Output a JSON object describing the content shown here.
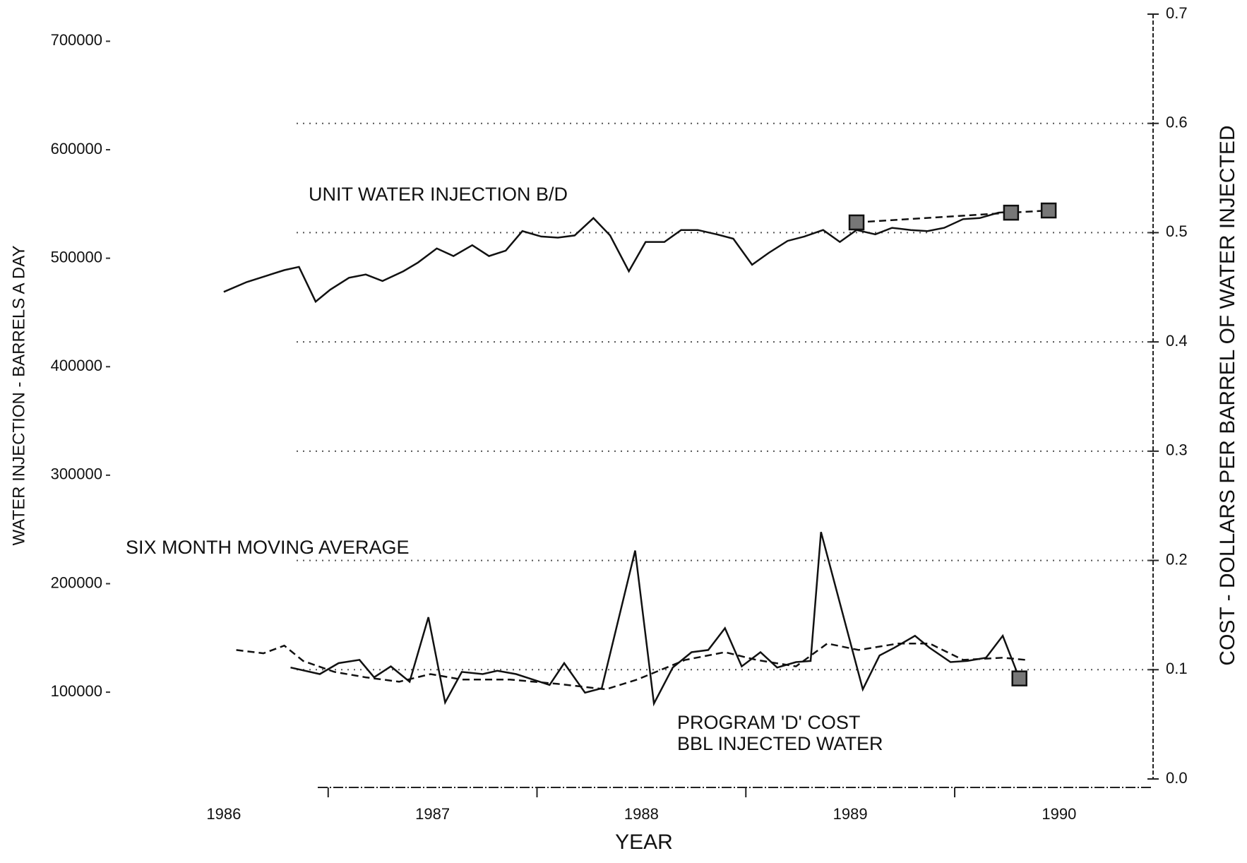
{
  "chart_data": {
    "type": "line",
    "y_label": "WATER INJECTION - BARRELS A DAY",
    "y2_label": "COST - DOLLARS PER BARREL OF WATER INJECTED",
    "x_label": "YEAR",
    "annotations": [
      "UNIT WATER INJECTION B/D",
      "SIX MONTH MOVING AVERAGE",
      "PROGRAM 'D' COST",
      "BBL INJECTED WATER"
    ],
    "xlim": [
      1985.5,
      1990.45
    ],
    "xticks": [
      1986,
      1987,
      1988,
      1989,
      1990
    ],
    "x_minor_ticks": [
      1986.5,
      1987.5,
      1988.5,
      1989.5
    ],
    "ylim": [
      20000,
      725000
    ],
    "yticks": [
      100000,
      200000,
      300000,
      400000,
      500000,
      600000,
      700000
    ],
    "y2lim": [
      0,
      0.7
    ],
    "y2ticks": [
      {
        "value": 0,
        "label": "0.0"
      },
      0.1,
      0.2,
      0.3,
      0.4,
      0.5,
      0.6,
      0.7
    ],
    "grid": true,
    "series": [
      {
        "color": "#111111",
        "line_style": "solid",
        "marker": "none",
        "x": [
          1986.0,
          1986.11,
          1986.29,
          1986.36,
          1986.44,
          1986.51,
          1986.6,
          1986.68,
          1986.76,
          1986.86,
          1986.93,
          1987.02,
          1987.1,
          1987.19,
          1987.27,
          1987.35,
          1987.43,
          1987.52,
          1987.6,
          1987.68,
          1987.77,
          1987.85,
          1987.94,
          1988.02,
          1988.11,
          1988.19,
          1988.27,
          1988.36,
          1988.44,
          1988.53,
          1988.61,
          1988.7,
          1988.78,
          1988.87,
          1988.95,
          1989.03,
          1989.12,
          1989.2,
          1989.29,
          1989.37,
          1989.45,
          1989.54,
          1989.62,
          1989.71,
          1989.78
        ],
        "values": [
          469000,
          478000,
          489000,
          492000,
          460000,
          471000,
          482000,
          485000,
          479000,
          488000,
          496000,
          509000,
          502000,
          512000,
          502000,
          507000,
          525000,
          520000,
          519000,
          521000,
          537000,
          521000,
          488000,
          515000,
          515000,
          526000,
          526000,
          522000,
          518000,
          494000,
          505000,
          516000,
          520000,
          526000,
          515000,
          526000,
          522000,
          528000,
          526000,
          525000,
          528000,
          536000,
          537000,
          542000,
          543000
        ]
      },
      {
        "color": "#111111",
        "line_style": "dashed",
        "marker": "square",
        "x": [
          1989.03,
          1989.77,
          1989.95
        ],
        "values": [
          533000,
          542000,
          544000
        ]
      },
      {
        "color": "#111111",
        "line_style": "solid",
        "marker": "none",
        "axis": "y2",
        "x": [
          1986.32,
          1986.46,
          1986.55,
          1986.65,
          1986.72,
          1986.8,
          1986.89,
          1986.98,
          1987.06,
          1987.14,
          1987.24,
          1987.31,
          1987.4,
          1987.48,
          1987.56,
          1987.63,
          1987.73,
          1987.81,
          1987.97,
          1988.06,
          1988.15,
          1988.24,
          1988.32,
          1988.4,
          1988.48,
          1988.57,
          1988.65,
          1988.74,
          1988.81,
          1988.86,
          1989.06,
          1989.14,
          1989.21,
          1989.31,
          1989.38,
          1989.48,
          1989.56,
          1989.65,
          1989.73,
          1989.81
        ],
        "values": [
          0.102,
          0.096,
          0.106,
          0.109,
          0.093,
          0.103,
          0.089,
          0.148,
          0.07,
          0.098,
          0.096,
          0.099,
          0.096,
          0.091,
          0.086,
          0.106,
          0.079,
          0.083,
          0.209,
          0.069,
          0.102,
          0.116,
          0.118,
          0.138,
          0.103,
          0.116,
          0.102,
          0.107,
          0.108,
          0.226,
          0.082,
          0.113,
          0.12,
          0.131,
          0.12,
          0.107,
          0.108,
          0.111,
          0.131,
          0.092
        ]
      },
      {
        "color": "#111111",
        "line_style": "dashed",
        "marker": "none",
        "axis": "y2",
        "x": [
          1986.06,
          1986.19,
          1986.29,
          1986.38,
          1986.53,
          1986.68,
          1986.84,
          1986.99,
          1987.14,
          1987.37,
          1987.6,
          1987.83,
          1987.98,
          1988.21,
          1988.4,
          1988.55,
          1988.74,
          1988.89,
          1989.04,
          1989.23,
          1989.38,
          1989.54,
          1989.73,
          1989.84
        ],
        "values": [
          0.118,
          0.115,
          0.122,
          0.108,
          0.098,
          0.093,
          0.089,
          0.096,
          0.091,
          0.091,
          0.087,
          0.082,
          0.091,
          0.109,
          0.116,
          0.109,
          0.103,
          0.124,
          0.118,
          0.124,
          0.124,
          0.109,
          0.111,
          0.109
        ]
      },
      {
        "color": "#111111",
        "line_style": "none",
        "marker": "square",
        "axis": "y2",
        "x": [
          1989.81
        ],
        "values": [
          0.092
        ]
      }
    ]
  }
}
